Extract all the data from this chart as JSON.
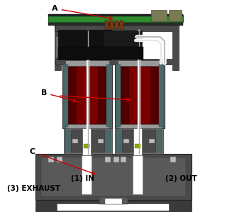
{
  "bg_color": "#ffffff",
  "colors": {
    "dark_gray": "#4a4a4a",
    "mid_gray": "#6e6e6e",
    "light_gray": "#999999",
    "very_light_gray": "#bbbbbb",
    "teal_gray": "#4a6a6a",
    "dark_red": "#7a0000",
    "red_shade": "#500000",
    "pcb_green": "#2e8b2e",
    "black": "#111111",
    "dark_black": "#1a1a1a",
    "white": "#ffffff",
    "off_white": "#dddddd",
    "arrow_red": "#cc0000",
    "olive_tan": "#7a7a55",
    "brown": "#7a3a10",
    "yellow_green": "#8aad00",
    "green_teal": "#3a7a5a"
  },
  "labels": {
    "A": "A",
    "B": "B",
    "C": "C",
    "in": "(1) IN",
    "out": "(2) OUT",
    "exhaust": "(3) EXHAUST"
  }
}
